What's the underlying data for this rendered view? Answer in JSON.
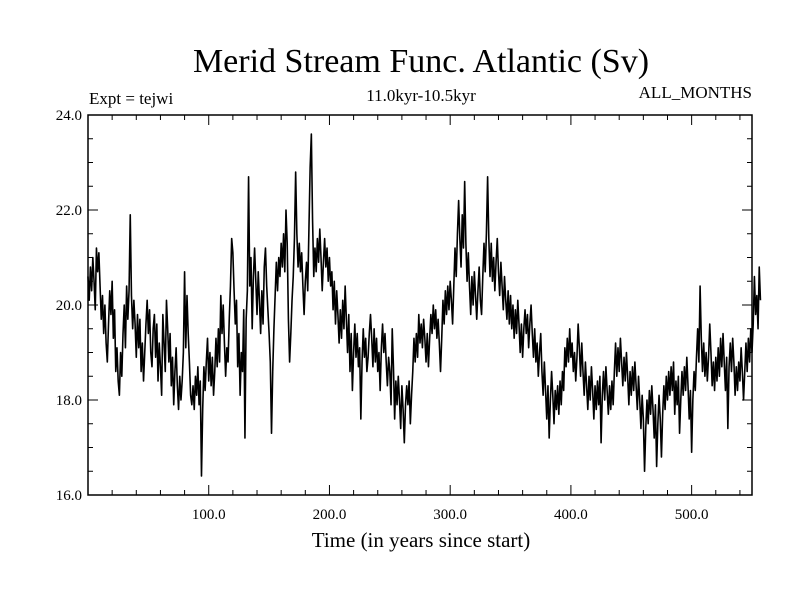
{
  "chart_data": {
    "type": "line",
    "title": "Merid Stream Func. Atlantic (Sv)",
    "subtitle": "11.0kyr-10.5kyr",
    "left_note": "Expt = tejwi",
    "right_note": "ALL_MONTHS",
    "xlabel": "Time (in years since start)",
    "ylabel": "",
    "xlim": [
      0,
      550
    ],
    "ylim": [
      16.0,
      24.0
    ],
    "x_ticks": [
      100,
      200,
      300,
      400,
      500
    ],
    "x_tick_labels": [
      "100.0",
      "200.0",
      "300.0",
      "400.0",
      "500.0"
    ],
    "y_ticks": [
      16,
      18,
      20,
      22,
      24
    ],
    "y_tick_labels": [
      "16.0",
      "18.0",
      "20.0",
      "22.0",
      "24.0"
    ],
    "x_minor_step": 20,
    "y_minor_step": 0.5,
    "grid": false,
    "series": [
      {
        "name": "Merid Stream Func. Atlantic",
        "x_start": 0,
        "x_step": 1,
        "values": [
          20.6,
          20.1,
          20.8,
          20.3,
          21.0,
          20.5,
          19.9,
          21.2,
          20.7,
          21.1,
          20.4,
          19.7,
          20.2,
          19.4,
          20.0,
          19.2,
          18.8,
          19.6,
          20.3,
          19.8,
          20.5,
          19.3,
          19.9,
          18.6,
          19.1,
          18.4,
          18.1,
          19.0,
          18.5,
          19.4,
          20.0,
          19.1,
          20.4,
          19.7,
          20.3,
          21.9,
          20.2,
          19.5,
          20.1,
          19.6,
          18.9,
          19.8,
          19.1,
          19.7,
          18.6,
          19.2,
          18.4,
          19.0,
          19.6,
          20.1,
          19.4,
          19.9,
          19.0,
          18.7,
          19.5,
          19.8,
          18.9,
          19.6,
          18.4,
          19.2,
          18.7,
          18.1,
          19.8,
          19.2,
          18.6,
          20.1,
          19.5,
          18.8,
          19.4,
          18.3,
          18.9,
          17.9,
          18.6,
          19.1,
          18.3,
          17.8,
          18.5,
          18.0,
          18.4,
          19.0,
          20.7,
          19.1,
          20.2,
          19.4,
          18.8,
          18.1,
          17.9,
          18.3,
          17.8,
          18.5,
          18.1,
          18.7,
          17.9,
          18.4,
          16.4,
          17.8,
          18.7,
          18.2,
          18.8,
          19.3,
          18.4,
          19.0,
          18.3,
          18.9,
          18.1,
          18.6,
          19.3,
          18.7,
          19.5,
          18.8,
          20.2,
          19.4,
          20.0,
          19.2,
          18.5,
          19.1,
          18.8,
          19.7,
          20.4,
          21.4,
          21.1,
          20.3,
          19.6,
          20.1,
          18.7,
          19.4,
          18.1,
          19.0,
          18.6,
          19.9,
          17.2,
          19.7,
          20.3,
          22.7,
          20.4,
          21.0,
          19.5,
          20.6,
          21.2,
          20.5,
          19.8,
          20.7,
          20.1,
          19.4,
          20.3,
          19.6,
          20.8,
          21.2,
          20.4,
          19.9,
          19.4,
          18.8,
          17.3,
          18.6,
          19.5,
          20.2,
          20.9,
          20.3,
          21.0,
          20.6,
          21.3,
          20.8,
          21.5,
          20.7,
          22.0,
          21.3,
          19.7,
          18.8,
          19.4,
          20.1,
          20.6,
          21.4,
          22.8,
          21.5,
          20.8,
          21.3,
          20.7,
          21.1,
          20.4,
          19.8,
          20.5,
          20.9,
          20.3,
          21.6,
          22.9,
          23.6,
          21.8,
          20.6,
          21.2,
          20.7,
          21.4,
          20.9,
          21.6,
          21.0,
          20.3,
          20.9,
          21.4,
          20.8,
          21.2,
          20.5,
          21.0,
          20.4,
          20.7,
          19.9,
          20.5,
          19.6,
          20.3,
          19.8,
          19.2,
          19.9,
          19.3,
          20.1,
          19.5,
          20.4,
          19.7,
          19.0,
          19.8,
          18.6,
          19.4,
          18.2,
          19.0,
          19.6,
          18.9,
          19.4,
          18.7,
          19.1,
          17.6,
          18.8,
          19.5,
          18.9,
          19.3,
          18.6,
          18.9,
          19.4,
          19.8,
          19.3,
          18.7,
          19.5,
          18.8,
          19.3,
          18.6,
          19.0,
          18.2,
          19.1,
          19.6,
          19.0,
          19.4,
          18.8,
          18.3,
          18.9,
          18.6,
          17.9,
          19.5,
          18.7,
          17.6,
          18.4,
          17.9,
          18.5,
          18.0,
          17.4,
          18.3,
          17.8,
          17.1,
          17.9,
          18.3,
          17.9,
          18.4,
          17.5,
          18.1,
          18.6,
          19.3,
          18.8,
          19.4,
          18.9,
          19.8,
          19.2,
          19.6,
          19.1,
          19.7,
          19.3,
          18.8,
          19.4,
          18.7,
          19.3,
          19.8,
          19.4,
          20.0,
          19.5,
          19.9,
          19.3,
          19.7,
          19.2,
          18.6,
          19.3,
          20.1,
          19.6,
          20.3,
          19.8,
          20.4,
          19.9,
          20.5,
          20.1,
          19.6,
          20.4,
          21.2,
          20.6,
          21.5,
          22.2,
          21.4,
          20.8,
          21.9,
          21.2,
          22.6,
          21.3,
          20.5,
          21.1,
          20.4,
          19.8,
          20.6,
          20.0,
          20.7,
          20.2,
          19.7,
          20.3,
          20.8,
          20.1,
          19.8,
          20.6,
          21.3,
          20.7,
          21.5,
          22.7,
          21.4,
          20.6,
          21.3,
          20.5,
          21.0,
          20.3,
          20.9,
          21.4,
          20.7,
          20.2,
          20.9,
          20.4,
          19.9,
          20.6,
          20.1,
          19.7,
          20.3,
          19.6,
          20.2,
          19.5,
          20.0,
          19.3,
          19.9,
          19.4,
          20.1,
          19.6,
          19.0,
          19.6,
          18.9,
          19.5,
          19.9,
          19.4,
          19.8,
          19.1,
          19.6,
          20.0,
          19.4,
          18.9,
          19.5,
          18.8,
          19.2,
          18.5,
          19.0,
          19.4,
          18.6,
          18.1,
          18.8,
          18.2,
          17.6,
          18.3,
          17.2,
          18.0,
          18.6,
          18.1,
          17.5,
          18.2,
          17.8,
          18.3,
          17.7,
          18.4,
          17.9,
          18.6,
          18.2,
          19.1,
          18.7,
          19.3,
          18.8,
          19.5,
          18.9,
          19.2,
          18.6,
          19.0,
          18.4,
          18.9,
          19.6,
          19.1,
          18.5,
          19.2,
          18.6,
          18.1,
          18.8,
          18.3,
          17.8,
          18.5,
          18.0,
          18.7,
          18.2,
          17.6,
          18.3,
          17.8,
          18.4,
          17.9,
          18.5,
          17.1,
          18.1,
          18.6,
          18.0,
          18.7,
          18.2,
          17.7,
          18.3,
          17.8,
          18.4,
          17.9,
          18.6,
          19.2,
          18.5,
          19.1,
          18.6,
          19.3,
          18.8,
          18.3,
          18.9,
          18.4,
          19.0,
          18.5,
          17.9,
          18.6,
          18.1,
          18.7,
          18.2,
          18.8,
          18.3,
          17.8,
          18.5,
          18.0,
          17.4,
          18.1,
          17.6,
          16.5,
          17.4,
          18.0,
          17.5,
          18.2,
          17.7,
          18.3,
          17.8,
          17.2,
          17.9,
          16.6,
          17.5,
          18.1,
          17.6,
          16.8,
          17.7,
          18.3,
          17.8,
          18.5,
          18.0,
          18.6,
          18.1,
          18.7,
          18.2,
          18.8,
          17.7,
          18.4,
          17.9,
          18.5,
          17.3,
          18.0,
          18.6,
          18.1,
          18.7,
          18.2,
          18.9,
          18.3,
          17.6,
          18.2,
          16.9,
          18.0,
          18.6,
          18.2,
          18.9,
          19.5,
          18.8,
          20.4,
          19.3,
          18.6,
          19.2,
          18.5,
          19.0,
          18.4,
          18.9,
          19.6,
          19.0,
          18.3,
          18.8,
          18.2,
          18.9,
          18.4,
          19.1,
          18.5,
          19.3,
          18.7,
          19.4,
          18.8,
          18.2,
          18.9,
          17.4,
          18.7,
          19.2,
          18.6,
          19.3,
          18.8,
          18.1,
          18.7,
          18.2,
          18.8,
          18.4,
          19.1,
          18.6,
          18.0,
          18.6,
          19.2,
          18.6,
          19.3,
          18.8,
          19.5,
          19.0,
          19.6,
          20.6,
          19.8,
          20.2,
          19.5,
          20.8,
          20.1
        ]
      }
    ]
  }
}
